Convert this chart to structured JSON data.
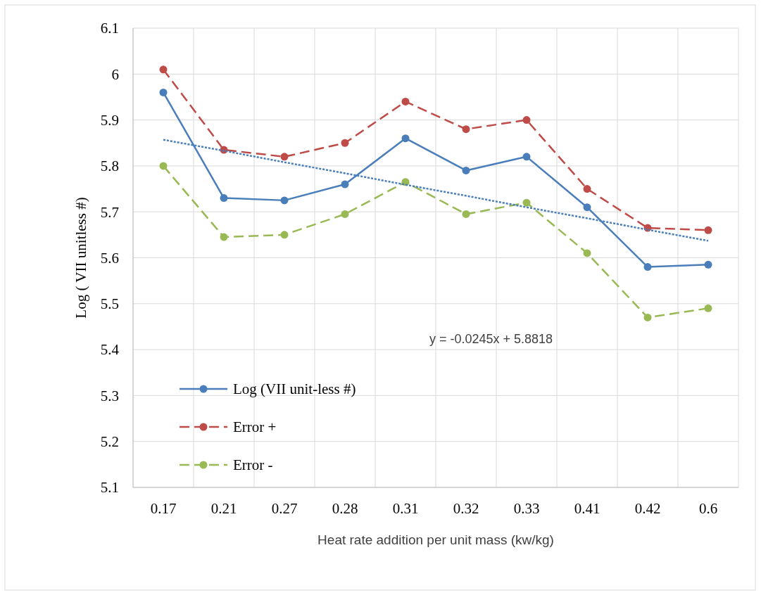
{
  "chart_data": {
    "type": "line",
    "xlabel": "Heat rate addition per unit mass (kw/kg)",
    "ylabel": "Log ( VII unitless #)",
    "categories": [
      "0.17",
      "0.21",
      "0.27",
      "0.28",
      "0.31",
      "0.32",
      "0.33",
      "0.41",
      "0.42",
      "0.6"
    ],
    "ylim": [
      5.1,
      6.1
    ],
    "yticks": [
      5.1,
      5.2,
      5.3,
      5.4,
      5.5,
      5.6,
      5.7,
      5.8,
      5.9,
      6,
      6.1
    ],
    "grid": true,
    "legend": "bottom left",
    "marker": "circle",
    "series": [
      {
        "name": "Log (VII unit-less #)",
        "color": "#4a7ebb",
        "line_style": "solid",
        "values": [
          5.96,
          5.73,
          5.725,
          5.76,
          5.86,
          5.79,
          5.82,
          5.71,
          5.58,
          5.585
        ]
      },
      {
        "name": "Error +",
        "color": "#be4b48",
        "line_style": "dashed",
        "values": [
          6.01,
          5.835,
          5.82,
          5.85,
          5.94,
          5.88,
          5.9,
          5.75,
          5.665,
          5.66
        ]
      },
      {
        "name": "Error -",
        "color": "#98b954",
        "line_style": "dashed",
        "values": [
          5.8,
          5.645,
          5.65,
          5.695,
          5.765,
          5.695,
          5.72,
          5.61,
          5.47,
          5.49
        ]
      },
      {
        "type": "line",
        "color": "#4a7ebb",
        "line_style": "dotted",
        "marker": "none",
        "x": [
          "0.17",
          "0.21",
          "0.27",
          "0.28",
          "0.31",
          "0.32",
          "0.33",
          "0.41",
          "0.42",
          "0.6"
        ],
        "values": [
          5.857,
          5.833,
          5.808,
          5.784,
          5.759,
          5.735,
          5.71,
          5.686,
          5.661,
          5.637
        ]
      }
    ],
    "annotations": [
      "y = -0.0245x + 5.8818"
    ]
  }
}
